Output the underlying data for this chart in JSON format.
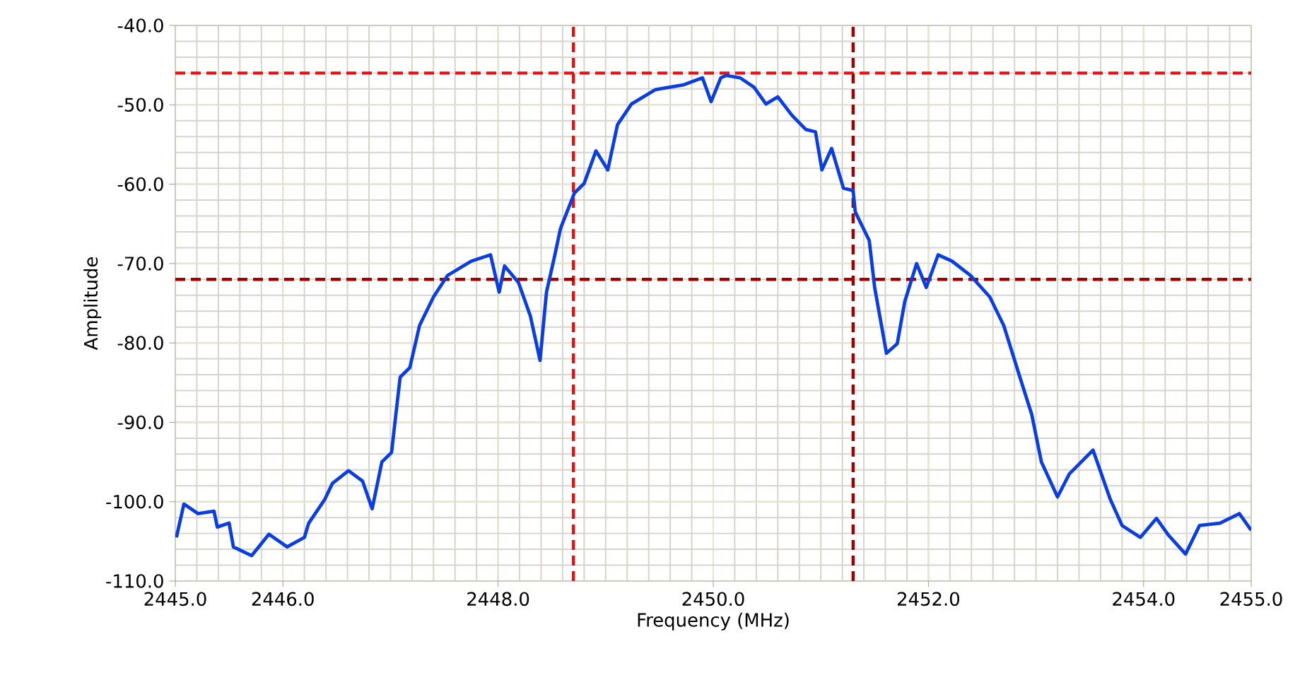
{
  "chart_data": {
    "type": "line",
    "xlabel": "Frequency (MHz)",
    "ylabel": "Amplitude",
    "xlim": [
      2445,
      2455
    ],
    "ylim": [
      -110,
      -40
    ],
    "xticks": [
      {
        "value": 2445,
        "label": "2445.0"
      },
      {
        "value": 2446,
        "label": "2446.0"
      },
      {
        "value": 2448,
        "label": "2448.0"
      },
      {
        "value": 2450,
        "label": "2450.0"
      },
      {
        "value": 2452,
        "label": "2452.0"
      },
      {
        "value": 2454,
        "label": "2454.0"
      },
      {
        "value": 2455,
        "label": "2455.0"
      }
    ],
    "yticks": [
      {
        "value": -40,
        "label": "-40.0"
      },
      {
        "value": -50,
        "label": "-50.0"
      },
      {
        "value": -60,
        "label": "-60.0"
      },
      {
        "value": -70,
        "label": "-70.0"
      },
      {
        "value": -80,
        "label": "-80.0"
      },
      {
        "value": -90,
        "label": "-90.0"
      },
      {
        "value": -100,
        "label": "-100.0"
      },
      {
        "value": -110,
        "label": "-110.0"
      }
    ],
    "grid": true,
    "marker": "none",
    "line_style": "solid",
    "ref_lines": [
      {
        "axis": "x",
        "value": 2448.7,
        "color": "#e81010",
        "line_style": "dashed"
      },
      {
        "axis": "x",
        "value": 2451.3,
        "color": "#a00000",
        "line_style": "dashed"
      },
      {
        "axis": "y",
        "value": -46,
        "color": "#e81010",
        "line_style": "dashed"
      },
      {
        "axis": "y",
        "value": -72,
        "color": "#a00000",
        "line_style": "dashed"
      }
    ],
    "series": [
      {
        "color": "#0a3ee0",
        "x": [
          2445.01,
          2445.08,
          2445.21,
          2445.36,
          2445.39,
          2445.5,
          2445.54,
          2445.71,
          2445.87,
          2446.04,
          2446.2,
          2446.24,
          2446.39,
          2446.46,
          2446.61,
          2446.74,
          2446.83,
          2446.92,
          2447.01,
          2447.05,
          2447.09,
          2447.18,
          2447.27,
          2447.4,
          2447.53,
          2447.75,
          2447.93,
          2448.01,
          2448.06,
          2448.19,
          2448.3,
          2448.39,
          2448.45,
          2448.52,
          2448.58,
          2448.71,
          2448.8,
          2448.91,
          2449.02,
          2449.11,
          2449.24,
          2449.46,
          2449.72,
          2449.9,
          2449.98,
          2450.07,
          2450.12,
          2450.25,
          2450.38,
          2450.49,
          2450.6,
          2450.73,
          2450.86,
          2450.95,
          2451.01,
          2451.1,
          2451.21,
          2451.3,
          2451.32,
          2451.45,
          2451.5,
          2451.61,
          2451.71,
          2451.78,
          2451.89,
          2451.98,
          2452.09,
          2452.22,
          2452.39,
          2452.57,
          2452.7,
          2452.85,
          2452.96,
          2453.05,
          2453.2,
          2453.31,
          2453.53,
          2453.69,
          2453.8,
          2453.97,
          2454.12,
          2454.23,
          2454.39,
          2454.52,
          2454.71,
          2454.89,
          2455.0
        ],
        "values": [
          -104.5,
          -100.3,
          -101.5,
          -101.2,
          -103.2,
          -102.7,
          -105.7,
          -106.8,
          -104.1,
          -105.7,
          -104.5,
          -102.7,
          -99.7,
          -97.7,
          -96.1,
          -97.4,
          -100.9,
          -95.0,
          -93.8,
          -89.0,
          -84.3,
          -83.1,
          -77.8,
          -74.2,
          -71.5,
          -69.7,
          -68.9,
          -73.6,
          -70.3,
          -72.4,
          -76.6,
          -82.2,
          -73.6,
          -69.4,
          -65.6,
          -61.1,
          -59.9,
          -55.8,
          -58.2,
          -52.5,
          -49.9,
          -48.1,
          -47.5,
          -46.6,
          -49.6,
          -46.6,
          -46.3,
          -46.6,
          -47.8,
          -49.9,
          -49.0,
          -51.3,
          -53.1,
          -53.4,
          -58.2,
          -55.5,
          -60.5,
          -60.8,
          -63.5,
          -67.1,
          -73.0,
          -81.3,
          -80.1,
          -74.8,
          -70.0,
          -73.0,
          -68.9,
          -69.7,
          -71.5,
          -74.2,
          -77.8,
          -84.3,
          -89.0,
          -95.0,
          -99.4,
          -96.5,
          -93.5,
          -99.7,
          -103.0,
          -104.5,
          -102.1,
          -104.2,
          -106.6,
          -103.0,
          -102.7,
          -101.5,
          -103.6
        ]
      }
    ]
  }
}
